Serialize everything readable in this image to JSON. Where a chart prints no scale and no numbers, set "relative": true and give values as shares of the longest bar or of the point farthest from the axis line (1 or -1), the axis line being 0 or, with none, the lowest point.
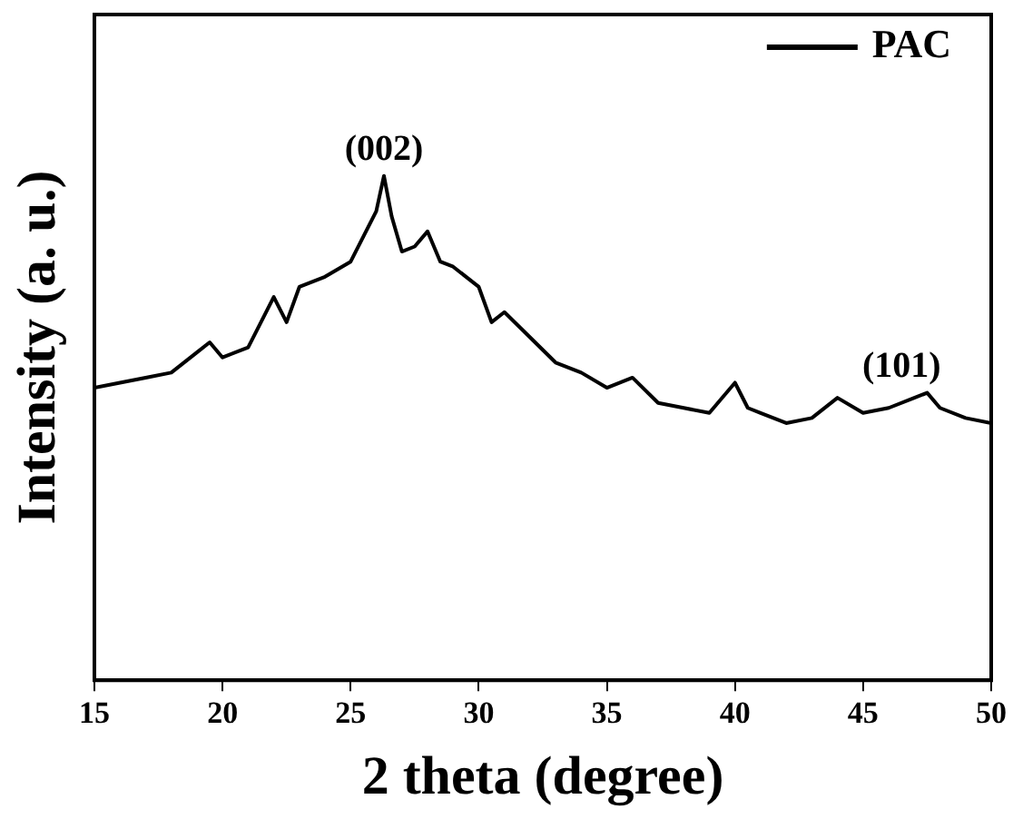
{
  "chart_data": {
    "type": "line",
    "xlabel": "2 theta (degree)",
    "ylabel": "Intensity (a. u.)",
    "relative": true,
    "xlim": [
      15,
      50
    ],
    "xticks": [
      15,
      20,
      25,
      30,
      35,
      40,
      45,
      50
    ],
    "grid": false,
    "legend": "top right",
    "marker": "none",
    "line_style": "solid",
    "series": [
      {
        "name": "PAC",
        "color": "#000000",
        "x": [
          15,
          16,
          17,
          18,
          19,
          19.5,
          20,
          21,
          22,
          22.5,
          23,
          24,
          25,
          25.5,
          26,
          26.3,
          26.6,
          27,
          27.5,
          28,
          28.5,
          29,
          30,
          30.5,
          31,
          32,
          33,
          34,
          35,
          36,
          37,
          38,
          39,
          40,
          40.5,
          41,
          42,
          43,
          44,
          45,
          46,
          47,
          47.5,
          48,
          49,
          50
        ],
        "values": [
          0.58,
          0.59,
          0.6,
          0.61,
          0.65,
          0.67,
          0.64,
          0.66,
          0.76,
          0.71,
          0.78,
          0.8,
          0.83,
          0.88,
          0.93,
          1.0,
          0.92,
          0.85,
          0.86,
          0.89,
          0.83,
          0.82,
          0.78,
          0.71,
          0.73,
          0.68,
          0.63,
          0.61,
          0.58,
          0.6,
          0.55,
          0.54,
          0.53,
          0.59,
          0.54,
          0.53,
          0.51,
          0.52,
          0.56,
          0.53,
          0.54,
          0.56,
          0.57,
          0.54,
          0.52,
          0.51
        ]
      }
    ],
    "annotations": [
      {
        "text": "(002)",
        "x": 26.3,
        "y": 1.0
      },
      {
        "text": "(101)",
        "x": 46.5,
        "y": 0.57
      }
    ]
  }
}
